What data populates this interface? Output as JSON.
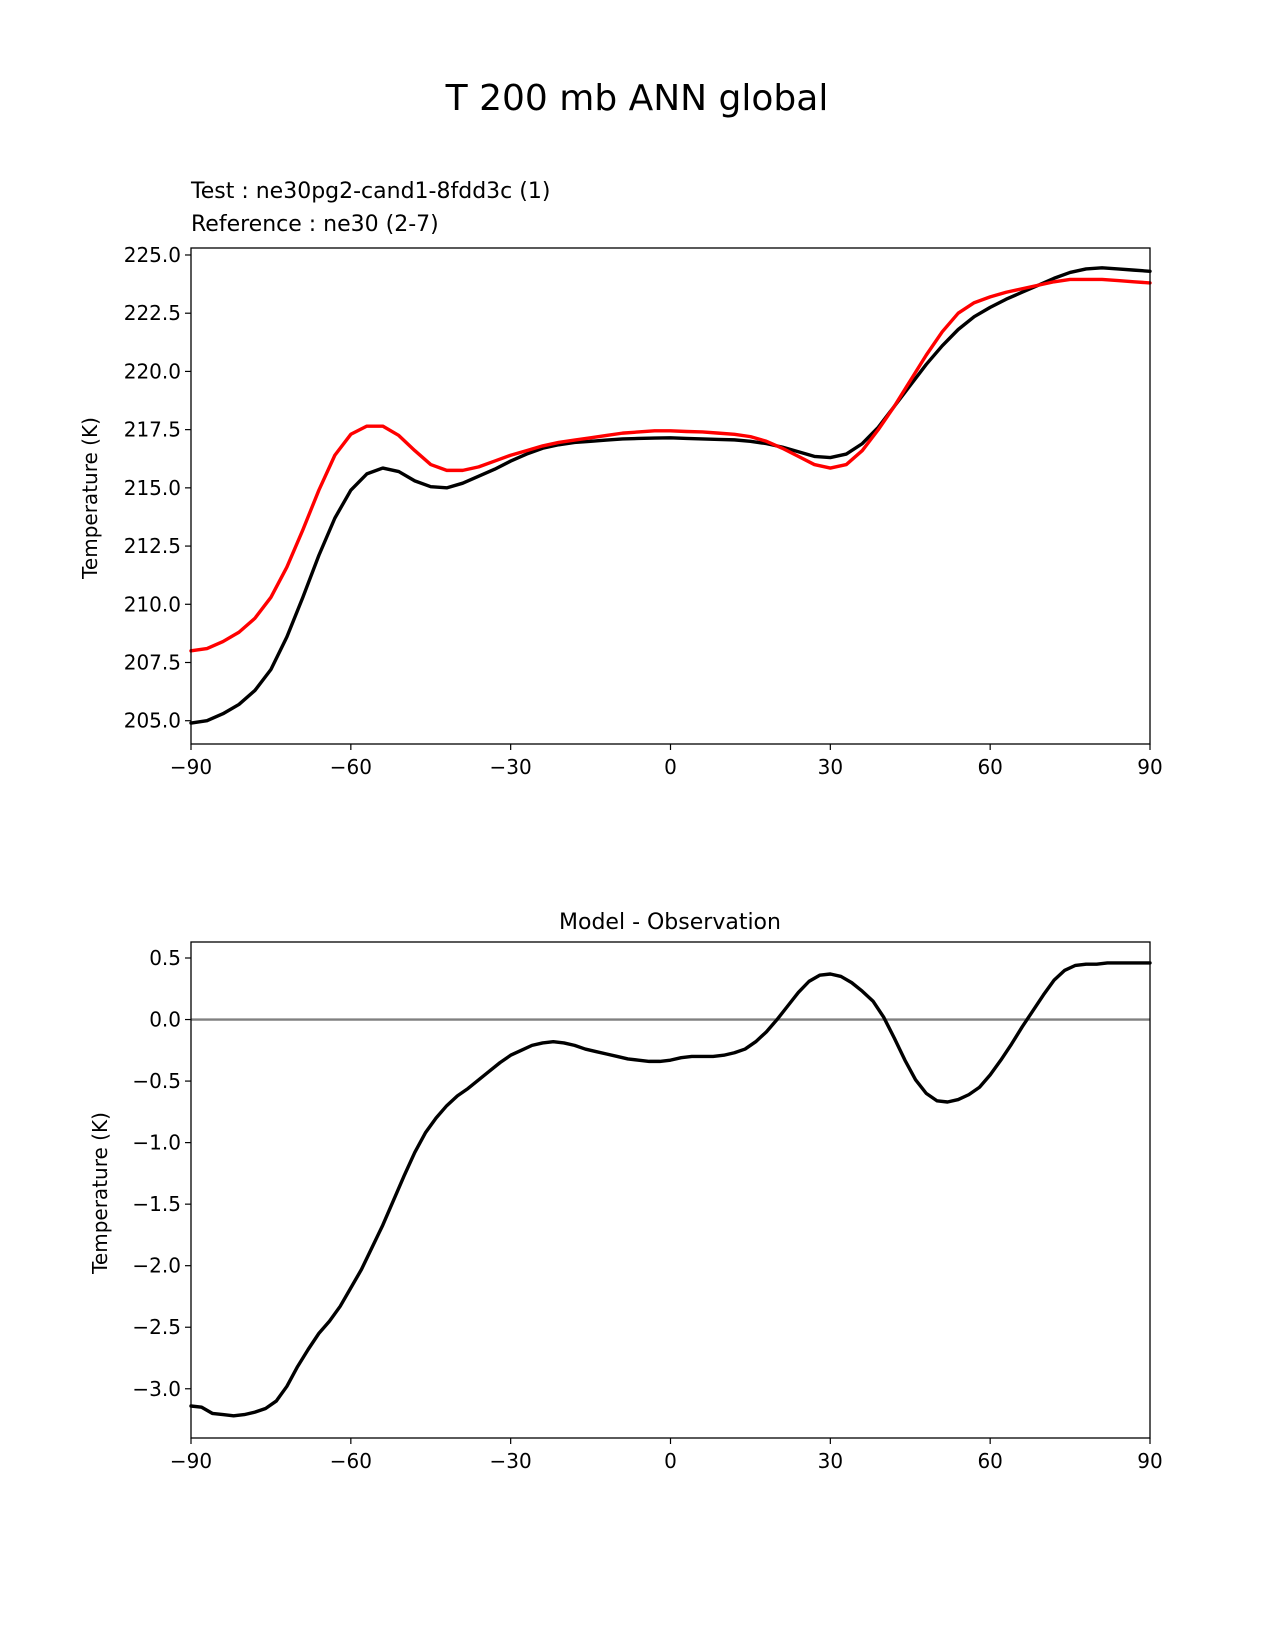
{
  "figure": {
    "suptitle": "T 200 mb ANN global"
  },
  "colors": {
    "test": "#000000",
    "reference": "#ff0000",
    "zero_line": "#808080",
    "background": "#ffffff"
  },
  "chart_data": [
    {
      "type": "line",
      "panel": "top",
      "title": "",
      "legend": {
        "test": "Test : ne30pg2-cand1-8fdd3c (1)",
        "reference": "Reference : ne30 (2-7)"
      },
      "xlabel": "",
      "ylabel": "Temperature (K)",
      "xlim": [
        -90,
        90
      ],
      "ylim": [
        204.0,
        225.3
      ],
      "xticks": [
        -90,
        -60,
        -30,
        0,
        30,
        60,
        90
      ],
      "xtick_labels": [
        "−90",
        "−60",
        "−30",
        "0",
        "30",
        "60",
        "90"
      ],
      "yticks": [
        205.0,
        207.5,
        210.0,
        212.5,
        215.0,
        217.5,
        220.0,
        222.5,
        225.0
      ],
      "ytick_labels": [
        "205.0",
        "207.5",
        "210.0",
        "212.5",
        "215.0",
        "217.5",
        "220.0",
        "222.5",
        "225.0"
      ],
      "series": [
        {
          "name": "test",
          "x": [
            -90,
            -87,
            -84,
            -81,
            -78,
            -75,
            -72,
            -69,
            -66,
            -63,
            -60,
            -57,
            -54,
            -51,
            -48,
            -45,
            -42,
            -39,
            -36,
            -33,
            -30,
            -27,
            -24,
            -21,
            -18,
            -15,
            -12,
            -9,
            -6,
            -3,
            0,
            3,
            6,
            9,
            12,
            15,
            18,
            21,
            24,
            27,
            30,
            33,
            36,
            39,
            42,
            45,
            48,
            51,
            54,
            57,
            60,
            63,
            66,
            69,
            72,
            75,
            78,
            81,
            84,
            87,
            90
          ],
          "values": [
            204.9,
            205.0,
            205.3,
            205.7,
            206.3,
            207.2,
            208.6,
            210.3,
            212.1,
            213.7,
            214.9,
            215.6,
            215.85,
            215.7,
            215.3,
            215.05,
            215.0,
            215.2,
            215.5,
            215.8,
            216.15,
            216.45,
            216.7,
            216.85,
            216.95,
            217.0,
            217.05,
            217.1,
            217.12,
            217.14,
            217.15,
            217.12,
            217.1,
            217.08,
            217.06,
            217.0,
            216.9,
            216.75,
            216.55,
            216.35,
            216.3,
            216.45,
            216.9,
            217.6,
            218.5,
            219.4,
            220.3,
            221.1,
            221.8,
            222.35,
            222.75,
            223.1,
            223.4,
            223.7,
            224.0,
            224.25,
            224.4,
            224.45,
            224.4,
            224.35,
            224.3
          ]
        },
        {
          "name": "reference",
          "x": [
            -90,
            -87,
            -84,
            -81,
            -78,
            -75,
            -72,
            -69,
            -66,
            -63,
            -60,
            -57,
            -54,
            -51,
            -48,
            -45,
            -42,
            -39,
            -36,
            -33,
            -30,
            -27,
            -24,
            -21,
            -18,
            -15,
            -12,
            -9,
            -6,
            -3,
            0,
            3,
            6,
            9,
            12,
            15,
            18,
            21,
            24,
            27,
            30,
            33,
            36,
            39,
            42,
            45,
            48,
            51,
            54,
            57,
            60,
            63,
            66,
            69,
            72,
            75,
            78,
            81,
            84,
            87,
            90
          ],
          "values": [
            208.0,
            208.1,
            208.4,
            208.8,
            209.4,
            210.3,
            211.6,
            213.2,
            214.9,
            216.4,
            217.3,
            217.65,
            217.65,
            217.25,
            216.6,
            216.0,
            215.75,
            215.75,
            215.9,
            216.15,
            216.4,
            216.6,
            216.8,
            216.95,
            217.05,
            217.15,
            217.25,
            217.35,
            217.4,
            217.45,
            217.45,
            217.42,
            217.4,
            217.35,
            217.3,
            217.2,
            217.0,
            216.7,
            216.35,
            216.0,
            215.85,
            216.0,
            216.6,
            217.5,
            218.5,
            219.6,
            220.7,
            221.7,
            222.5,
            222.95,
            223.2,
            223.4,
            223.55,
            223.7,
            223.85,
            223.95,
            223.95,
            223.95,
            223.9,
            223.85,
            223.8
          ]
        }
      ]
    },
    {
      "type": "line",
      "panel": "bottom",
      "title": "Model - Observation",
      "xlabel": "",
      "ylabel": "Temperature (K)",
      "xlim": [
        -90,
        90
      ],
      "ylim": [
        -3.4,
        0.63
      ],
      "xticks": [
        -90,
        -60,
        -30,
        0,
        30,
        60,
        90
      ],
      "xtick_labels": [
        "−90",
        "−60",
        "−30",
        "0",
        "30",
        "60",
        "90"
      ],
      "yticks": [
        -3.0,
        -2.5,
        -2.0,
        -1.5,
        -1.0,
        -0.5,
        0.0,
        0.5
      ],
      "ytick_labels": [
        "−3.0",
        "−2.5",
        "−2.0",
        "−1.5",
        "−1.0",
        "−0.5",
        "0.0",
        "0.5"
      ],
      "zero_line": 0.0,
      "series": [
        {
          "name": "difference",
          "x": [
            -90,
            -88,
            -86,
            -84,
            -82,
            -80,
            -78,
            -76,
            -74,
            -72,
            -70,
            -68,
            -66,
            -64,
            -62,
            -60,
            -58,
            -56,
            -54,
            -52,
            -50,
            -48,
            -46,
            -44,
            -42,
            -40,
            -38,
            -36,
            -34,
            -32,
            -30,
            -28,
            -26,
            -24,
            -22,
            -20,
            -18,
            -16,
            -14,
            -12,
            -10,
            -8,
            -6,
            -4,
            -2,
            0,
            2,
            4,
            6,
            8,
            10,
            12,
            14,
            16,
            18,
            20,
            22,
            24,
            26,
            28,
            30,
            32,
            34,
            36,
            38,
            40,
            42,
            44,
            46,
            48,
            50,
            52,
            54,
            56,
            58,
            60,
            62,
            64,
            66,
            68,
            70,
            72,
            74,
            76,
            78,
            80,
            82,
            84,
            86,
            88,
            90
          ],
          "values": [
            -3.14,
            -3.15,
            -3.2,
            -3.21,
            -3.22,
            -3.21,
            -3.19,
            -3.16,
            -3.1,
            -2.98,
            -2.82,
            -2.68,
            -2.55,
            -2.45,
            -2.33,
            -2.18,
            -2.03,
            -1.85,
            -1.67,
            -1.47,
            -1.27,
            -1.08,
            -0.92,
            -0.8,
            -0.7,
            -0.62,
            -0.56,
            -0.49,
            -0.42,
            -0.35,
            -0.29,
            -0.25,
            -0.21,
            -0.19,
            -0.18,
            -0.19,
            -0.21,
            -0.24,
            -0.26,
            -0.28,
            -0.3,
            -0.32,
            -0.33,
            -0.34,
            -0.34,
            -0.33,
            -0.31,
            -0.3,
            -0.3,
            -0.3,
            -0.29,
            -0.27,
            -0.24,
            -0.18,
            -0.1,
            0.0,
            0.11,
            0.22,
            0.31,
            0.36,
            0.37,
            0.35,
            0.3,
            0.23,
            0.15,
            0.02,
            -0.15,
            -0.33,
            -0.49,
            -0.6,
            -0.66,
            -0.67,
            -0.65,
            -0.61,
            -0.55,
            -0.45,
            -0.33,
            -0.2,
            -0.06,
            0.07,
            0.2,
            0.32,
            0.4,
            0.44,
            0.45,
            0.45,
            0.46,
            0.46,
            0.46,
            0.46,
            0.46
          ]
        }
      ]
    }
  ]
}
